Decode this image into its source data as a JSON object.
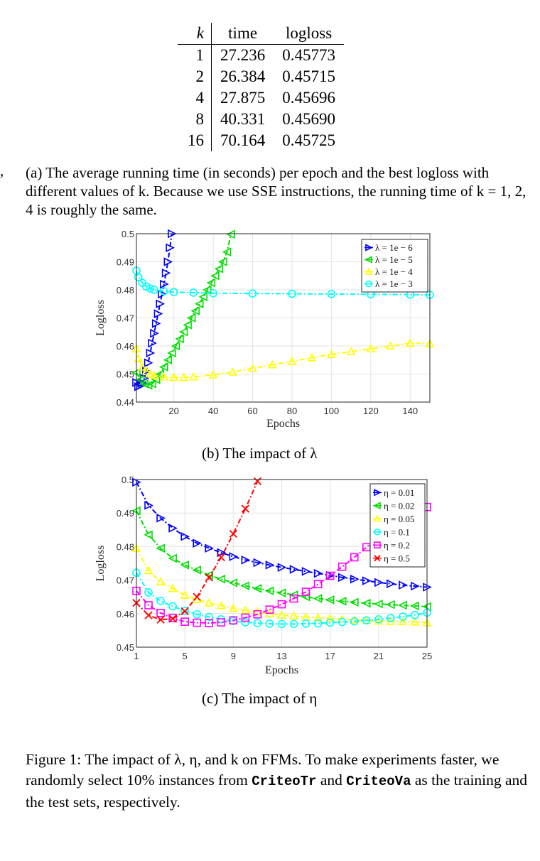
{
  "table": {
    "headers": [
      "k",
      "time",
      "logloss"
    ],
    "rows": [
      [
        "1",
        "27.236",
        "0.45773"
      ],
      [
        "2",
        "26.384",
        "0.45715"
      ],
      [
        "4",
        "27.875",
        "0.45696"
      ],
      [
        "8",
        "40.331",
        "0.45690"
      ],
      [
        "16",
        "70.164",
        "0.45725"
      ]
    ]
  },
  "stray_mark": ",",
  "caption_a": "(a) The average running time (in seconds) per epoch and the best logloss with different values of k. Because we use SSE instructions, the running time of k = 1, 2, 4 is roughly the same.",
  "caption_b": "(b) The impact of λ",
  "caption_c": "(c) The impact of η",
  "figure_caption": {
    "part1": "Figure 1: The impact of λ, η, and k on FFMs. To make experiments faster, we randomly select 10% instances from ",
    "code1": "CriteoTr",
    "part2": " and ",
    "code2": "CriteoVa",
    "part3": " as the training and the test sets, respectively."
  },
  "chart_data": [
    {
      "type": "line",
      "xlabel": "Epochs",
      "ylabel": "Logloss",
      "xlim": [
        1,
        150
      ],
      "ylim": [
        0.44,
        0.5
      ],
      "xticks": [
        20,
        40,
        60,
        80,
        100,
        120,
        140
      ],
      "yticks": [
        0.44,
        0.45,
        0.46,
        0.47,
        0.48,
        0.49,
        0.5
      ],
      "grid": true,
      "legend_position": "top-right",
      "series": [
        {
          "name": "λ = 1e − 6",
          "color": "#0000ff",
          "marker": "triangle-right",
          "x": [
            1,
            2,
            3,
            4,
            5,
            6,
            7,
            8,
            9,
            10,
            11,
            12,
            13,
            14,
            15,
            16,
            17,
            18,
            19
          ],
          "y": [
            0.447,
            0.4455,
            0.4458,
            0.4468,
            0.4485,
            0.451,
            0.454,
            0.4575,
            0.461,
            0.4645,
            0.468,
            0.4715,
            0.475,
            0.4785,
            0.482,
            0.486,
            0.49,
            0.495,
            0.5
          ]
        },
        {
          "name": "λ = 1e − 5",
          "color": "#00dd00",
          "marker": "triangle-left",
          "x": [
            1,
            3,
            5,
            7,
            9,
            11,
            13,
            15,
            17,
            19,
            21,
            23,
            25,
            27,
            29,
            31,
            33,
            35,
            37,
            39,
            41,
            43,
            45,
            47,
            49
          ],
          "y": [
            0.4505,
            0.448,
            0.4465,
            0.446,
            0.4465,
            0.448,
            0.45,
            0.4525,
            0.455,
            0.4575,
            0.46,
            0.4625,
            0.465,
            0.4675,
            0.47,
            0.4725,
            0.475,
            0.4775,
            0.48,
            0.4825,
            0.485,
            0.4875,
            0.49,
            0.4935,
            0.4998
          ]
        },
        {
          "name": "λ = 1e − 4",
          "color": "#ffff00",
          "marker": "triangle-up",
          "x": [
            1,
            2,
            4,
            6,
            8,
            10,
            15,
            20,
            25,
            30,
            40,
            50,
            60,
            70,
            80,
            90,
            100,
            110,
            120,
            130,
            140,
            150
          ],
          "y": [
            0.459,
            0.4555,
            0.4525,
            0.451,
            0.45,
            0.4495,
            0.449,
            0.4488,
            0.4488,
            0.449,
            0.4497,
            0.4507,
            0.452,
            0.4533,
            0.4545,
            0.4558,
            0.457,
            0.458,
            0.459,
            0.46,
            0.461,
            0.4608
          ]
        },
        {
          "name": "λ = 1e − 3",
          "color": "#00ffff",
          "marker": "circle",
          "x": [
            1,
            2,
            4,
            6,
            8,
            10,
            15,
            20,
            30,
            40,
            60,
            80,
            100,
            120,
            140,
            150
          ],
          "y": [
            0.4868,
            0.4845,
            0.4825,
            0.4812,
            0.4805,
            0.48,
            0.4795,
            0.4792,
            0.479,
            0.4788,
            0.4787,
            0.4786,
            0.4785,
            0.4784,
            0.4783,
            0.4782
          ]
        }
      ]
    },
    {
      "type": "line",
      "xlabel": "Epochs",
      "ylabel": "Logloss",
      "xlim": [
        1,
        25
      ],
      "ylim": [
        0.45,
        0.5
      ],
      "xticks": [
        1,
        5,
        9,
        13,
        17,
        21,
        25
      ],
      "yticks": [
        0.45,
        0.46,
        0.47,
        0.48,
        0.49,
        0.5
      ],
      "grid": true,
      "legend_position": "top-right",
      "series": [
        {
          "name": "η = 0.01",
          "color": "#0000ff",
          "marker": "triangle-right",
          "x": [
            1,
            2,
            3,
            4,
            5,
            6,
            7,
            8,
            9,
            10,
            11,
            12,
            13,
            14,
            15,
            16,
            17,
            18,
            19,
            20,
            21,
            22,
            23,
            24,
            25
          ],
          "y": [
            0.4992,
            0.4923,
            0.4885,
            0.4855,
            0.483,
            0.481,
            0.4795,
            0.4782,
            0.477,
            0.476,
            0.4752,
            0.4745,
            0.4738,
            0.4732,
            0.4726,
            0.472,
            0.4714,
            0.4708,
            0.4703,
            0.4698,
            0.4693,
            0.4689,
            0.4685,
            0.4682,
            0.4679
          ]
        },
        {
          "name": "η = 0.02",
          "color": "#00dd00",
          "marker": "triangle-left",
          "x": [
            1,
            2,
            3,
            4,
            5,
            6,
            7,
            8,
            9,
            10,
            11,
            12,
            13,
            14,
            15,
            16,
            17,
            18,
            19,
            20,
            21,
            22,
            23,
            24,
            25
          ],
          "y": [
            0.4907,
            0.4835,
            0.4795,
            0.4765,
            0.4745,
            0.473,
            0.4715,
            0.4703,
            0.4692,
            0.4683,
            0.4675,
            0.4668,
            0.4662,
            0.4656,
            0.465,
            0.4645,
            0.4641,
            0.4637,
            0.4634,
            0.4631,
            0.4629,
            0.4627,
            0.4625,
            0.4623,
            0.4621
          ]
        },
        {
          "name": "η = 0.05",
          "color": "#ffff00",
          "marker": "triangle-up",
          "x": [
            1,
            2,
            3,
            4,
            5,
            6,
            7,
            8,
            9,
            10,
            11,
            12,
            13,
            14,
            15,
            16,
            17,
            18,
            19,
            20,
            21,
            22,
            23,
            24,
            25
          ],
          "y": [
            0.4795,
            0.4728,
            0.4695,
            0.4675,
            0.4655,
            0.4642,
            0.4632,
            0.4624,
            0.4616,
            0.461,
            0.4605,
            0.46,
            0.4596,
            0.4593,
            0.459,
            0.4588,
            0.4586,
            0.4584,
            0.4582,
            0.458,
            0.4578,
            0.4577,
            0.4576,
            0.4575,
            0.4573
          ]
        },
        {
          "name": "η = 0.1",
          "color": "#00ffff",
          "marker": "circle",
          "x": [
            1,
            2,
            3,
            4,
            5,
            6,
            7,
            8,
            9,
            10,
            11,
            12,
            13,
            14,
            15,
            16,
            17,
            18,
            19,
            20,
            21,
            22,
            23,
            24,
            25
          ],
          "y": [
            0.4722,
            0.4663,
            0.4638,
            0.4622,
            0.4608,
            0.4598,
            0.459,
            0.4583,
            0.4578,
            0.4574,
            0.4572,
            0.457,
            0.4569,
            0.4569,
            0.457,
            0.4571,
            0.4573,
            0.4575,
            0.4577,
            0.458,
            0.4583,
            0.4587,
            0.4591,
            0.4596,
            0.4603
          ]
        },
        {
          "name": "η = 0.2",
          "color": "#ff00ff",
          "marker": "square",
          "x": [
            1,
            2,
            3,
            4,
            5,
            6,
            7,
            8,
            9,
            10,
            11,
            12,
            13,
            14,
            15,
            16,
            17,
            18,
            19,
            20,
            21,
            22,
            23,
            24,
            25
          ],
          "y": [
            0.4668,
            0.4625,
            0.4602,
            0.4587,
            0.4576,
            0.4573,
            0.4572,
            0.4574,
            0.458,
            0.4588,
            0.4598,
            0.4612,
            0.4628,
            0.4645,
            0.4665,
            0.4688,
            0.4713,
            0.474,
            0.4768,
            0.4798,
            0.483,
            0.4862,
            0.4895,
            0.4925,
            0.4918
          ]
        },
        {
          "name": "η = 0.5",
          "color": "#ff0000",
          "marker": "x",
          "x": [
            1,
            2,
            3,
            4,
            5,
            6,
            7,
            8,
            9,
            10,
            11
          ],
          "y": [
            0.4632,
            0.4595,
            0.4582,
            0.4585,
            0.4607,
            0.465,
            0.4708,
            0.4768,
            0.4838,
            0.4913,
            0.4995
          ]
        }
      ]
    }
  ]
}
